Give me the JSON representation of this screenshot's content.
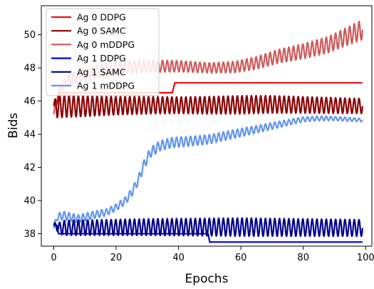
{
  "chart_data": {
    "type": "line",
    "xlabel": "Epochs",
    "ylabel": "Bids",
    "xlim": [
      -4,
      102
    ],
    "ylim": [
      37.25,
      51.75
    ],
    "xticks": [
      0,
      20,
      40,
      60,
      80,
      100
    ],
    "yticks": [
      38,
      40,
      42,
      44,
      46,
      48,
      50
    ],
    "grid": false,
    "legend_position": "top-left",
    "series": [
      {
        "name": "Ag 0 DDPG",
        "color": "#ee1111",
        "kind": "step",
        "points": [
          [
            0,
            45.9
          ],
          [
            1,
            45.9
          ],
          [
            1.5,
            46.5
          ],
          [
            38,
            46.5
          ],
          [
            38.8,
            47.1
          ],
          [
            99,
            47.1
          ]
        ]
      },
      {
        "name": "Ag 0 SAMC",
        "color": "#8b0000",
        "kind": "osc",
        "x_start": 0,
        "x_end": 99,
        "period": 1.5,
        "base": [
          [
            0,
            45.7
          ],
          [
            10,
            45.7
          ],
          [
            30,
            45.75
          ],
          [
            50,
            45.75
          ],
          [
            70,
            45.8
          ],
          [
            99,
            45.7
          ]
        ],
        "amp": [
          [
            0,
            0.25
          ],
          [
            1,
            0.7
          ],
          [
            20,
            0.55
          ],
          [
            40,
            0.5
          ],
          [
            60,
            0.55
          ],
          [
            99,
            0.45
          ]
        ]
      },
      {
        "name": "Ag 0 mDDPG",
        "color": "#cd5c5c",
        "kind": "osc",
        "x_start": 0,
        "x_end": 99,
        "period": 1.5,
        "base": [
          [
            0,
            45.2
          ],
          [
            2,
            46.8
          ],
          [
            5,
            47.3
          ],
          [
            10,
            47.6
          ],
          [
            20,
            48.0
          ],
          [
            30,
            48.1
          ],
          [
            40,
            48.1
          ],
          [
            50,
            48.0
          ],
          [
            58,
            48.05
          ],
          [
            65,
            48.3
          ],
          [
            72,
            48.7
          ],
          [
            80,
            49.0
          ],
          [
            88,
            49.4
          ],
          [
            94,
            49.9
          ],
          [
            99,
            50.3
          ]
        ],
        "amp": [
          [
            0,
            0.2
          ],
          [
            5,
            0.35
          ],
          [
            20,
            0.4
          ],
          [
            50,
            0.3
          ],
          [
            70,
            0.4
          ],
          [
            90,
            0.5
          ],
          [
            99,
            0.6
          ]
        ]
      },
      {
        "name": "Ag 1 DDPG",
        "color": "#0000ee",
        "kind": "step",
        "points": [
          [
            0,
            38.5
          ],
          [
            1,
            38.5
          ],
          [
            1.5,
            38.0
          ],
          [
            49.5,
            38.0
          ],
          [
            50,
            37.5
          ],
          [
            99,
            37.5
          ]
        ]
      },
      {
        "name": "Ag 1 SAMC",
        "color": "#00008b",
        "kind": "osc",
        "x_start": 0,
        "x_end": 99,
        "period": 1.5,
        "base": [
          [
            0,
            38.5
          ],
          [
            2,
            38.35
          ],
          [
            30,
            38.4
          ],
          [
            60,
            38.4
          ],
          [
            99,
            38.35
          ]
        ],
        "amp": [
          [
            0,
            0.15
          ],
          [
            3,
            0.45
          ],
          [
            30,
            0.5
          ],
          [
            60,
            0.55
          ],
          [
            99,
            0.5
          ]
        ]
      },
      {
        "name": "Ag 1 mDDPG",
        "color": "#6495ed",
        "kind": "osc",
        "x_start": 0,
        "x_end": 99,
        "period": 1.5,
        "base": [
          [
            0,
            38.3
          ],
          [
            1,
            39.0
          ],
          [
            3,
            39.1
          ],
          [
            8,
            38.9
          ],
          [
            12,
            39.1
          ],
          [
            17,
            39.3
          ],
          [
            20,
            39.6
          ],
          [
            23,
            40.0
          ],
          [
            25,
            40.5
          ],
          [
            27,
            41.2
          ],
          [
            29,
            42.2
          ],
          [
            31,
            42.9
          ],
          [
            34,
            43.3
          ],
          [
            38,
            43.5
          ],
          [
            45,
            43.6
          ],
          [
            50,
            43.7
          ],
          [
            55,
            43.9
          ],
          [
            60,
            44.1
          ],
          [
            65,
            44.3
          ],
          [
            70,
            44.5
          ],
          [
            75,
            44.7
          ],
          [
            80,
            44.9
          ],
          [
            85,
            44.95
          ],
          [
            90,
            44.95
          ],
          [
            99,
            44.85
          ]
        ],
        "amp": [
          [
            0,
            0.2
          ],
          [
            3,
            0.25
          ],
          [
            20,
            0.2
          ],
          [
            30,
            0.3
          ],
          [
            40,
            0.3
          ],
          [
            60,
            0.25
          ],
          [
            80,
            0.15
          ],
          [
            99,
            0.1
          ]
        ]
      }
    ]
  }
}
